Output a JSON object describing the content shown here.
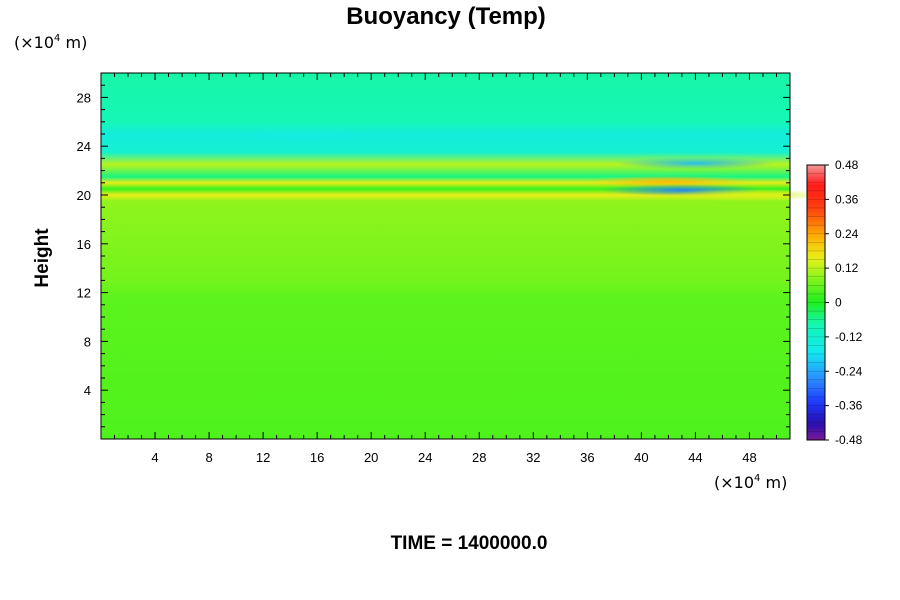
{
  "chart_data": {
    "type": "heatmap",
    "title": "Buoyancy (Temp)",
    "ylabel": "Height",
    "y_unit_prefix": "(×10",
    "y_unit_exp": "4",
    "y_unit_suffix": " m)",
    "x_unit_prefix": "(×10",
    "x_unit_exp": "4",
    "x_unit_suffix": " m)",
    "xlim": [
      0,
      51
    ],
    "ylim": [
      0,
      30
    ],
    "x_ticks": [
      4,
      8,
      12,
      16,
      20,
      24,
      28,
      32,
      36,
      40,
      44,
      48
    ],
    "x_tick_labels": [
      "4",
      "8",
      "12",
      "16",
      "20",
      "24",
      "28",
      "32",
      "36",
      "40",
      "44",
      "48"
    ],
    "y_ticks": [
      4,
      8,
      12,
      16,
      20,
      24,
      28
    ],
    "y_tick_labels": [
      "4",
      "8",
      "12",
      "16",
      "20",
      "24",
      "28"
    ],
    "colorbar": {
      "min": -0.48,
      "max": 0.48,
      "ticks": [
        0.48,
        0.36,
        0.24,
        0.12,
        0,
        -0.12,
        -0.24,
        -0.36,
        -0.48
      ],
      "tick_labels": [
        "0.48",
        "0.36",
        "0.24",
        "0.12",
        "0",
        "-0.12",
        "-0.24",
        "-0.36",
        "-0.48"
      ]
    },
    "field_profile": [
      {
        "height": 0,
        "value": 0.04
      },
      {
        "height": 11.5,
        "value": 0.05
      },
      {
        "height": 13,
        "value": 0.07
      },
      {
        "height": 19.5,
        "value": 0.09
      },
      {
        "height": 20,
        "value": 0.16
      },
      {
        "height": 20.5,
        "value": 0.02
      },
      {
        "height": 21,
        "value": 0.16
      },
      {
        "height": 21.5,
        "value": -0.05
      },
      {
        "height": 22.5,
        "value": 0.12
      },
      {
        "height": 23.5,
        "value": -0.12
      },
      {
        "height": 25,
        "value": -0.14
      },
      {
        "height": 26,
        "value": -0.08
      },
      {
        "height": 30,
        "value": -0.07
      }
    ],
    "features": [
      {
        "x": 42,
        "height": 21.1,
        "value": 0.22
      },
      {
        "x": 43,
        "height": 20.4,
        "value": -0.28
      },
      {
        "x": 44,
        "height": 22.6,
        "value": -0.22
      },
      {
        "x": 15,
        "height": 24.8,
        "value": -0.15
      },
      {
        "x": 48,
        "height": 20.0,
        "value": 0.14
      }
    ]
  },
  "footer": {
    "time_label": "TIME = 1400000.0"
  }
}
